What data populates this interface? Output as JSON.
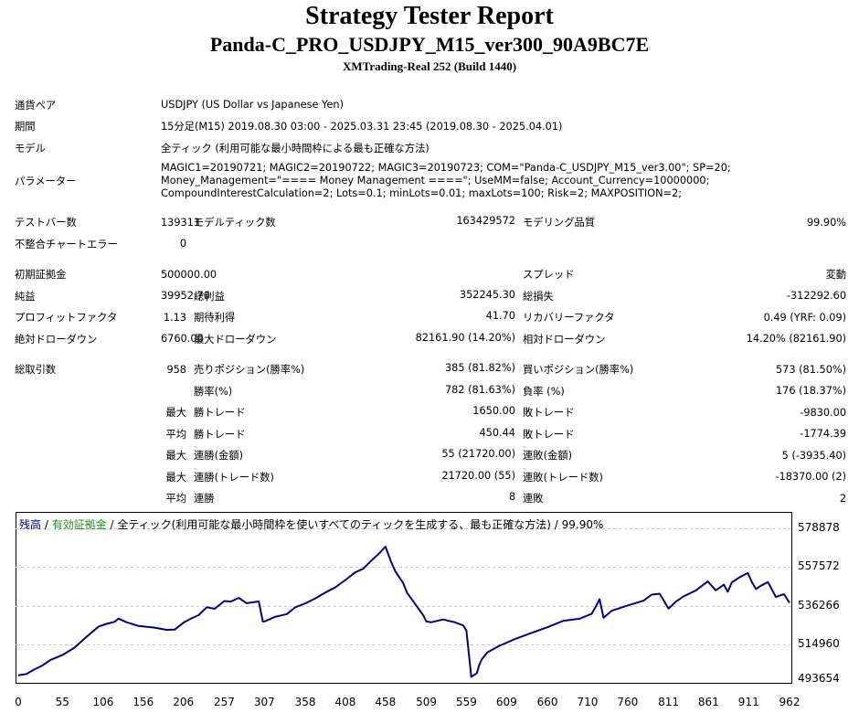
{
  "header": {
    "title": "Strategy Tester Report",
    "ea_name": "Panda-C_PRO_USDJPY_M15_ver300_90A9BC7E",
    "server": "XMTrading-Real 252 (Build 1440)"
  },
  "info": {
    "pair_label": "通貨ペア",
    "pair_value": "USDJPY (US Dollar vs Japanese Yen)",
    "period_label": "期間",
    "period_value": "15分足(M15) 2019.08.30 03:00 - 2025.03.31 23:45 (2019.08.30 - 2025.04.01)",
    "model_label": "モデル",
    "model_value": "全ティック (利用可能な最小時間枠による最も正確な方法)",
    "params_label": "パラメーター",
    "params_value": "MAGIC1=20190721; MAGIC2=20190722; MAGIC3=20190723; COM=\"Panda-C_USDJPY_M15_ver3.00\"; SP=20; Money_Management=\"==== Money Management ====\"; UseMM=false; Account_Currency=10000000; CompoundInterestCalculation=2; Lots=0.1; minLots=0.01; maxLots=100; Risk=2; MAXPOSITION=2;"
  },
  "stats": {
    "bars_label": "テストバー数",
    "bars": "139311",
    "ticks_label": "モデルティック数",
    "ticks": "163429572",
    "quality_label": "モデリング品質",
    "quality": "99.90%",
    "mismatch_label": "不整合チャートエラー",
    "mismatch": "0",
    "deposit_label": "初期証拠金",
    "deposit": "500000.00",
    "spread_label": "スプレッド",
    "spread": "変動",
    "net_label": "純益",
    "net": "39952.70",
    "gross_profit_label": "総利益",
    "gross_profit": "352245.30",
    "gross_loss_label": "総損失",
    "gross_loss": "-312292.60",
    "pf_label": "プロフィットファクタ",
    "pf": "1.13",
    "expected_label": "期待利得",
    "expected": "41.70",
    "recovery_label": "リカバリーファクタ",
    "recovery": "0.49 (YRF: 0.09)",
    "abs_dd_label": "絶対ドローダウン",
    "abs_dd": "6760.00",
    "max_dd_label": "最大ドローダウン",
    "max_dd": "82161.90 (14.20%)",
    "rel_dd_label": "相対ドローダウン",
    "rel_dd": "14.20% (82161.90)",
    "trades_label": "総取引数",
    "trades": "958",
    "short_label": "売りポジション(勝率%)",
    "short": "385 (81.82%)",
    "long_label": "買いポジション(勝率%)",
    "long": "573 (81.50%)",
    "win_rate_label": "勝率(%)",
    "win_rate": "782 (81.63%)",
    "loss_rate_label": "負率 (%)",
    "loss_rate": "176 (18.37%)",
    "max_label": "最大",
    "avg_label": "平均",
    "win_trade_label": "勝トレード",
    "loss_trade_label": "敗トレード",
    "max_win": "1650.00",
    "max_loss": "-9830.00",
    "avg_win": "450.44",
    "avg_loss": "-1774.39",
    "cons_win_amt_label": "連勝(金額)",
    "cons_win_amt": "55 (21720.00)",
    "cons_loss_amt_label": "連敗(金額)",
    "cons_loss_amt": "5 (-3935.40)",
    "cons_win_cnt_label": "連勝(トレード数)",
    "cons_win_cnt": "21720.00 (55)",
    "cons_loss_cnt_label": "連敗(トレード数)",
    "cons_loss_cnt": "-18370.00 (2)",
    "avg_cons_win_label": "連勝",
    "avg_cons_win": "8",
    "avg_cons_loss_label": "連敗",
    "avg_cons_loss": "2"
  },
  "legend": {
    "balance": "残高",
    "sep1": " / ",
    "equity": "有効証拠金",
    "rest": " / 全ティック(利用可能な最小時間枠を使いすべてのティックを生成する、最も正確な方法) / 99.90%"
  },
  "colors": {
    "balance_line": "#000080",
    "equity": "#228b22",
    "grid": "#c8c8c8"
  },
  "chart_data": {
    "type": "line",
    "title": "",
    "xlabel": "",
    "ylabel": "",
    "x_ticks": [
      "0",
      "55",
      "106",
      "156",
      "206",
      "257",
      "307",
      "358",
      "408",
      "458",
      "509",
      "559",
      "609",
      "660",
      "710",
      "760",
      "811",
      "861",
      "911",
      "962"
    ],
    "y_ticks": [
      "578878",
      "557572",
      "536266",
      "514960",
      "493654"
    ],
    "ylim": [
      493654,
      578878
    ],
    "xlim": [
      0,
      962
    ],
    "grid": true,
    "series": [
      {
        "x": [
          0,
          10,
          20,
          30,
          40,
          55,
          70,
          85,
          100,
          110,
          120,
          125,
          135,
          150,
          170,
          185,
          195,
          206,
          215,
          225,
          235,
          245,
          257,
          265,
          275,
          285,
          300,
          305,
          307,
          320,
          335,
          345,
          358,
          370,
          385,
          395,
          408,
          420,
          430,
          440,
          450,
          458,
          465,
          470,
          475,
          480,
          485,
          490,
          505,
          509,
          515,
          530,
          545,
          555,
          559,
          565,
          572,
          575,
          578,
          585,
          600,
          620,
          640,
          660,
          680,
          700,
          715,
          720,
          725,
          730,
          740,
          760,
          780,
          790,
          800,
          811,
          815,
          820,
          830,
          845,
          860,
          870,
          880,
          885,
          890,
          900,
          910,
          915,
          920,
          925,
          935,
          945,
          955,
          962
        ],
        "y": [
          497800,
          498500,
          501000,
          503200,
          506200,
          509000,
          513000,
          519000,
          524600,
          526200,
          527300,
          529100,
          527100,
          525000,
          524100,
          522900,
          523000,
          526800,
          529000,
          531000,
          535300,
          534500,
          538800,
          538500,
          540500,
          537600,
          538600,
          527500,
          527500,
          530000,
          531600,
          535200,
          537500,
          540100,
          544000,
          546200,
          550400,
          554500,
          556600,
          560900,
          565000,
          568800,
          560400,
          555500,
          552000,
          548800,
          543300,
          540200,
          531000,
          527500,
          527100,
          528600,
          527000,
          525300,
          522500,
          497000,
          499000,
          503600,
          506500,
          510400,
          514100,
          517900,
          521200,
          524300,
          527900,
          529000,
          531700,
          535400,
          539800,
          529500,
          533400,
          536300,
          539000,
          542300,
          542800,
          534600,
          536200,
          538400,
          541400,
          544600,
          549600,
          544700,
          547800,
          543900,
          549000,
          552000,
          554200,
          549300,
          545400,
          546900,
          549300,
          541000,
          542600,
          537800
        ]
      }
    ]
  }
}
